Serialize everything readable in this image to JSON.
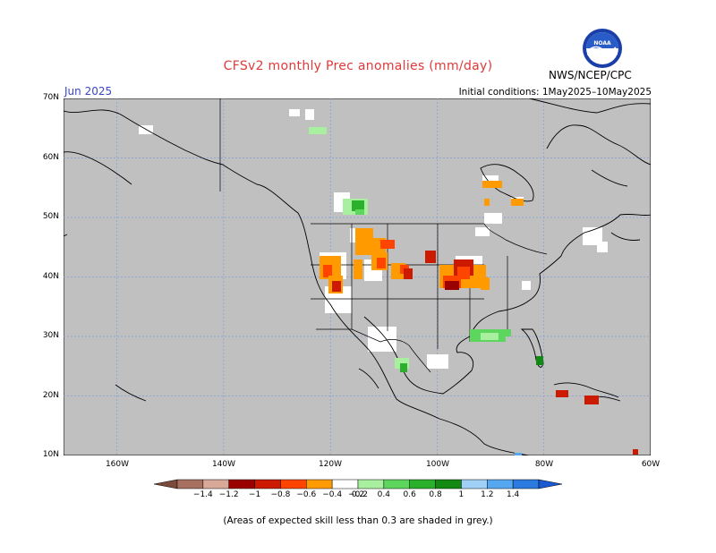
{
  "title": "CFSv2 monthly Prec anomalies (mm/day)",
  "period": "Jun 2025",
  "initial_conditions": "Initial conditions: 1May2025–10May2025",
  "agency": "NWS/NCEP/CPC",
  "logo_text": "NOAA",
  "footnote": "(Areas of expected skill less than 0.3 are shaded in grey.)",
  "map": {
    "projection": "equirectangular",
    "lon_range": [
      -170,
      -60
    ],
    "lat_range": [
      10,
      70
    ],
    "background_color": "#c0c0c0",
    "no_signal_color": "#ffffff",
    "lat_labels": [
      "70N",
      "60N",
      "50N",
      "40N",
      "30N",
      "20N",
      "10N"
    ],
    "lon_labels": [
      "160W",
      "140W",
      "120W",
      "100W",
      "80W",
      "60W"
    ]
  },
  "colorbar": {
    "labels": [
      "−1.4",
      "−1.2",
      "−1",
      "−0.8",
      "−0.6",
      "−0.4",
      "−0.2",
      "0.2",
      "0.4",
      "0.6",
      "0.8",
      "1",
      "1.2",
      "1.4"
    ],
    "colors": [
      "#7b4a3a",
      "#a87060",
      "#d8a898",
      "#9a0000",
      "#cc1a00",
      "#ff4400",
      "#ff9a00",
      "#ffffff",
      "#a8f0a0",
      "#5cd65c",
      "#2ab02a",
      "#128a12",
      "#a0d0f5",
      "#55a8f0",
      "#2a7ae0",
      "#1a5ad0"
    ]
  }
}
